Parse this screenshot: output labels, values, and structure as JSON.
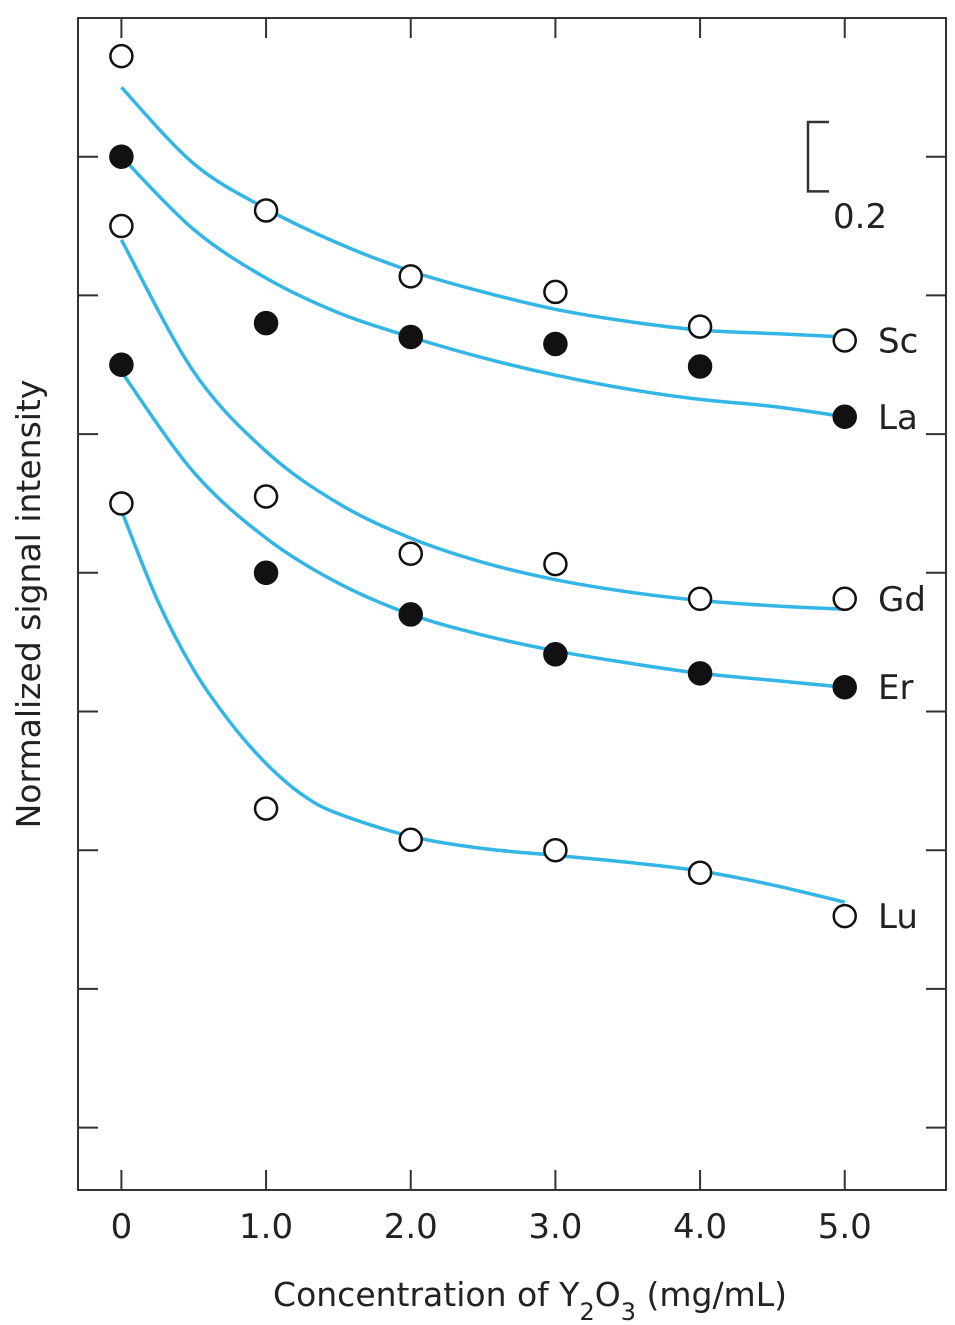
{
  "chart_data": {
    "type": "scatter",
    "title": "",
    "xlabel": "Concentration of Y2O3 (mg/mL)",
    "xlabel_parts": {
      "pre": "Concentration of Y",
      "sub1": "2",
      "mid": "O",
      "sub2": "3",
      "post": " (mg/mL)"
    },
    "ylabel": "Normalized signal intensity",
    "x_ticks": [
      "0",
      "1.0",
      "2.0",
      "3.0",
      "4.0",
      "5.0"
    ],
    "xlim": [
      -0.3,
      5.7
    ],
    "ylim": [
      -0.98,
      2.4
    ],
    "y_tick_values": [
      -0.8,
      -0.4,
      0,
      0.4,
      0.8,
      1.2,
      1.6,
      2.0
    ],
    "y_tick_labels_shown": false,
    "scale_bar": {
      "label": "0.2",
      "value": 0.2,
      "center_y": 2.0
    },
    "line_color": "#33b5e5",
    "marker_stroke": "#111111",
    "legend": "inline labels at right end of curves",
    "series": [
      {
        "name": "Sc",
        "marker": "open",
        "x": [
          0,
          1,
          2,
          3,
          4,
          5
        ],
        "y": [
          2.29,
          1.845,
          1.655,
          1.61,
          1.51,
          1.47
        ],
        "fit_x": [
          0,
          0.5,
          1,
          1.5,
          2,
          2.5,
          3,
          3.5,
          4,
          4.5,
          5
        ],
        "fit_y": [
          2.2,
          1.98,
          1.85,
          1.75,
          1.67,
          1.61,
          1.56,
          1.525,
          1.5,
          1.49,
          1.48
        ]
      },
      {
        "name": "La",
        "marker": "filled",
        "x": [
          0,
          1,
          2,
          3,
          4,
          5
        ],
        "y": [
          2.0,
          1.52,
          1.48,
          1.46,
          1.395,
          1.25
        ],
        "fit_x": [
          0,
          0.5,
          1,
          1.5,
          2,
          2.5,
          3,
          3.5,
          4,
          4.5,
          5
        ],
        "fit_y": [
          2.0,
          1.79,
          1.65,
          1.55,
          1.48,
          1.42,
          1.37,
          1.33,
          1.3,
          1.28,
          1.25
        ]
      },
      {
        "name": "Gd",
        "marker": "open",
        "x": [
          0,
          1,
          2,
          3,
          4,
          5
        ],
        "y": [
          1.8,
          1.02,
          0.855,
          0.825,
          0.725,
          0.725
        ],
        "fit_x": [
          0,
          0.5,
          1,
          1.5,
          2,
          2.5,
          3,
          3.5,
          4,
          4.5,
          5
        ],
        "fit_y": [
          1.76,
          1.38,
          1.15,
          1.0,
          0.9,
          0.83,
          0.78,
          0.745,
          0.72,
          0.705,
          0.695
        ]
      },
      {
        "name": "Er",
        "marker": "filled",
        "x": [
          0,
          1,
          2,
          3,
          4,
          5
        ],
        "y": [
          1.4,
          0.8,
          0.68,
          0.565,
          0.51,
          0.47
        ],
        "fit_x": [
          0,
          0.5,
          1,
          1.5,
          2,
          2.5,
          3,
          3.5,
          4,
          4.5,
          5
        ],
        "fit_y": [
          1.38,
          1.09,
          0.9,
          0.77,
          0.68,
          0.62,
          0.575,
          0.54,
          0.51,
          0.49,
          0.47
        ]
      },
      {
        "name": "Lu",
        "marker": "open",
        "x": [
          0,
          1,
          2,
          3,
          4,
          5
        ],
        "y": [
          1.0,
          0.12,
          0.03,
          0.0,
          -0.065,
          -0.19
        ],
        "fit_x": [
          0,
          0.25,
          0.5,
          0.75,
          1,
          1.25,
          1.5,
          2,
          2.5,
          3,
          3.5,
          4,
          4.5,
          5
        ],
        "fit_y": [
          0.98,
          0.72,
          0.52,
          0.37,
          0.25,
          0.16,
          0.105,
          0.04,
          0.005,
          -0.015,
          -0.035,
          -0.06,
          -0.1,
          -0.15
        ]
      }
    ]
  }
}
